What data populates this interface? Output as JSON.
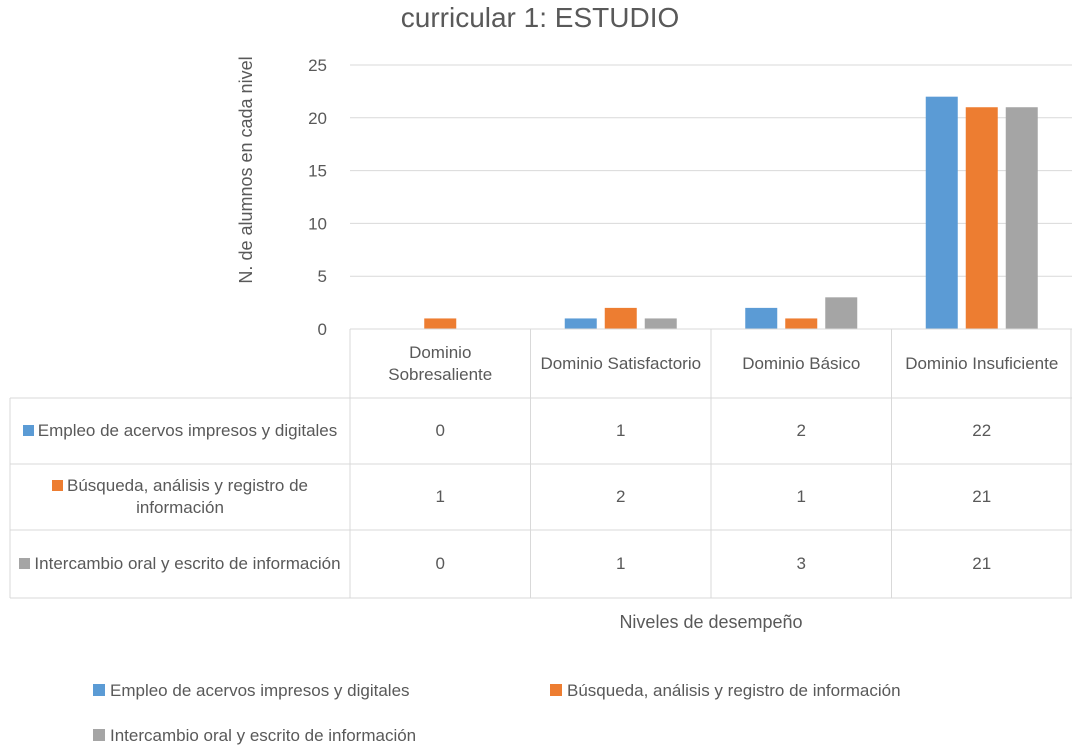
{
  "chart_data": {
    "type": "bar",
    "title": "curricular 1: ESTUDIO",
    "y_label": "N. de alumnos en cada nivel",
    "x_label": "Niveles de desempeño",
    "categories": [
      "Dominio Sobresaliente",
      "Dominio Satisfactorio",
      "Dominio Básico",
      "Dominio Insuficiente"
    ],
    "series": [
      {
        "name": "Empleo de acervos impresos y digitales",
        "color": "#5b9bd5",
        "values": [
          0,
          1,
          2,
          22
        ]
      },
      {
        "name": "Búsqueda, análisis y registro de información",
        "color": "#ed7d31",
        "values": [
          1,
          2,
          1,
          21
        ]
      },
      {
        "name": "Intercambio oral y escrito de información",
        "color": "#a5a5a5",
        "values": [
          0,
          1,
          3,
          21
        ]
      }
    ],
    "ylim": [
      0,
      25
    ],
    "yticks": [
      0,
      5,
      10,
      15,
      20,
      25
    ],
    "grid": true,
    "legend": "bottom",
    "data_table": true
  }
}
